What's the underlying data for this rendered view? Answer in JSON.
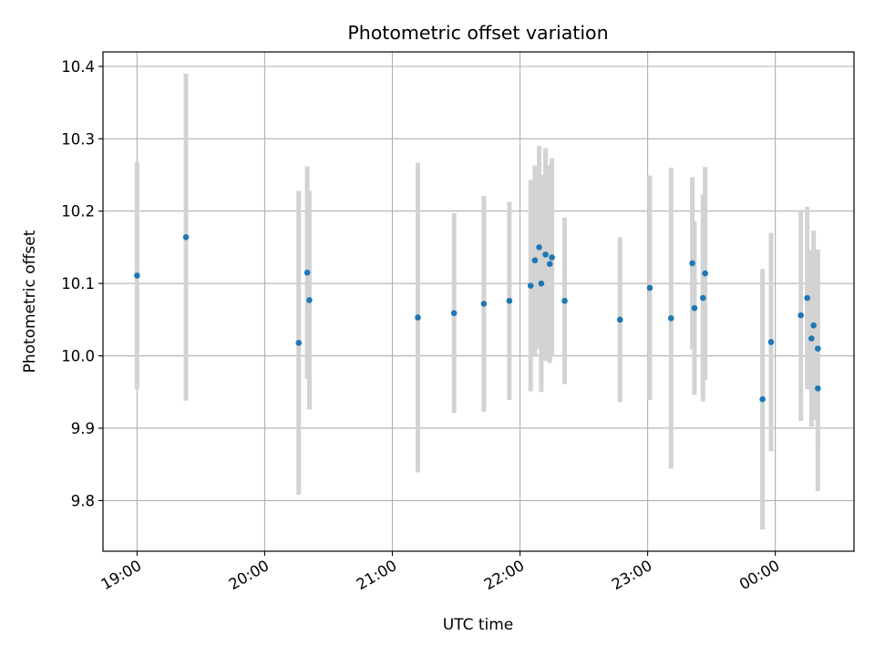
{
  "chart_data": {
    "type": "scatter",
    "title": "Photometric offset variation",
    "xlabel": "UTC time",
    "ylabel": "Photometric offset",
    "x_ticks": [
      "19:00",
      "20:00",
      "21:00",
      "22:00",
      "23:00",
      "00:00"
    ],
    "y_ticks": [
      "9.8",
      "9.9",
      "10.0",
      "10.1",
      "10.2",
      "10.3",
      "10.4"
    ],
    "ylim": [
      9.73,
      10.42
    ],
    "xlim": [
      "18:44",
      "00:37"
    ],
    "grid": true,
    "colors": {
      "points": "#1f77b4",
      "errorbars": "#d3d3d3",
      "grid": "#b0b0b0"
    },
    "points": [
      {
        "x": "19:00",
        "y": 10.111,
        "err": 0.157
      },
      {
        "x": "19:23",
        "y": 10.164,
        "err": 0.226
      },
      {
        "x": "20:16",
        "y": 10.018,
        "err": 0.21
      },
      {
        "x": "20:20",
        "y": 10.115,
        "err": 0.147
      },
      {
        "x": "20:21",
        "y": 10.077,
        "err": 0.151
      },
      {
        "x": "21:12",
        "y": 10.053,
        "err": 0.214
      },
      {
        "x": "21:29",
        "y": 10.059,
        "err": 0.138
      },
      {
        "x": "21:43",
        "y": 10.072,
        "err": 0.149
      },
      {
        "x": "21:55",
        "y": 10.076,
        "err": 0.137
      },
      {
        "x": "22:05",
        "y": 10.097,
        "err": 0.146
      },
      {
        "x": "22:07",
        "y": 10.132,
        "err": 0.131
      },
      {
        "x": "22:09",
        "y": 10.15,
        "err": 0.14
      },
      {
        "x": "22:10",
        "y": 10.1,
        "err": 0.15
      },
      {
        "x": "22:12",
        "y": 10.14,
        "err": 0.147
      },
      {
        "x": "22:14",
        "y": 10.127,
        "err": 0.137
      },
      {
        "x": "22:15",
        "y": 10.136,
        "err": 0.137
      },
      {
        "x": "22:21",
        "y": 10.076,
        "err": 0.115
      },
      {
        "x": "22:47",
        "y": 10.05,
        "err": 0.114
      },
      {
        "x": "23:01",
        "y": 10.094,
        "err": 0.155
      },
      {
        "x": "23:11",
        "y": 10.052,
        "err": 0.208
      },
      {
        "x": "23:21",
        "y": 10.128,
        "err": 0.119
      },
      {
        "x": "23:22",
        "y": 10.066,
        "err": 0.12
      },
      {
        "x": "23:26",
        "y": 10.08,
        "err": 0.143
      },
      {
        "x": "23:27",
        "y": 10.114,
        "err": 0.147
      },
      {
        "x": "23:54",
        "y": 9.94,
        "err": 0.18
      },
      {
        "x": "23:58",
        "y": 10.019,
        "err": 0.151
      },
      {
        "x": "00:12",
        "y": 10.056,
        "err": 0.146
      },
      {
        "x": "00:15",
        "y": 10.08,
        "err": 0.126
      },
      {
        "x": "00:17",
        "y": 10.024,
        "err": 0.122
      },
      {
        "x": "00:18",
        "y": 10.042,
        "err": 0.131
      },
      {
        "x": "00:20",
        "y": 10.01,
        "err": 0.137
      },
      {
        "x": "00:20",
        "y": 9.955,
        "err": 0.142
      }
    ]
  }
}
